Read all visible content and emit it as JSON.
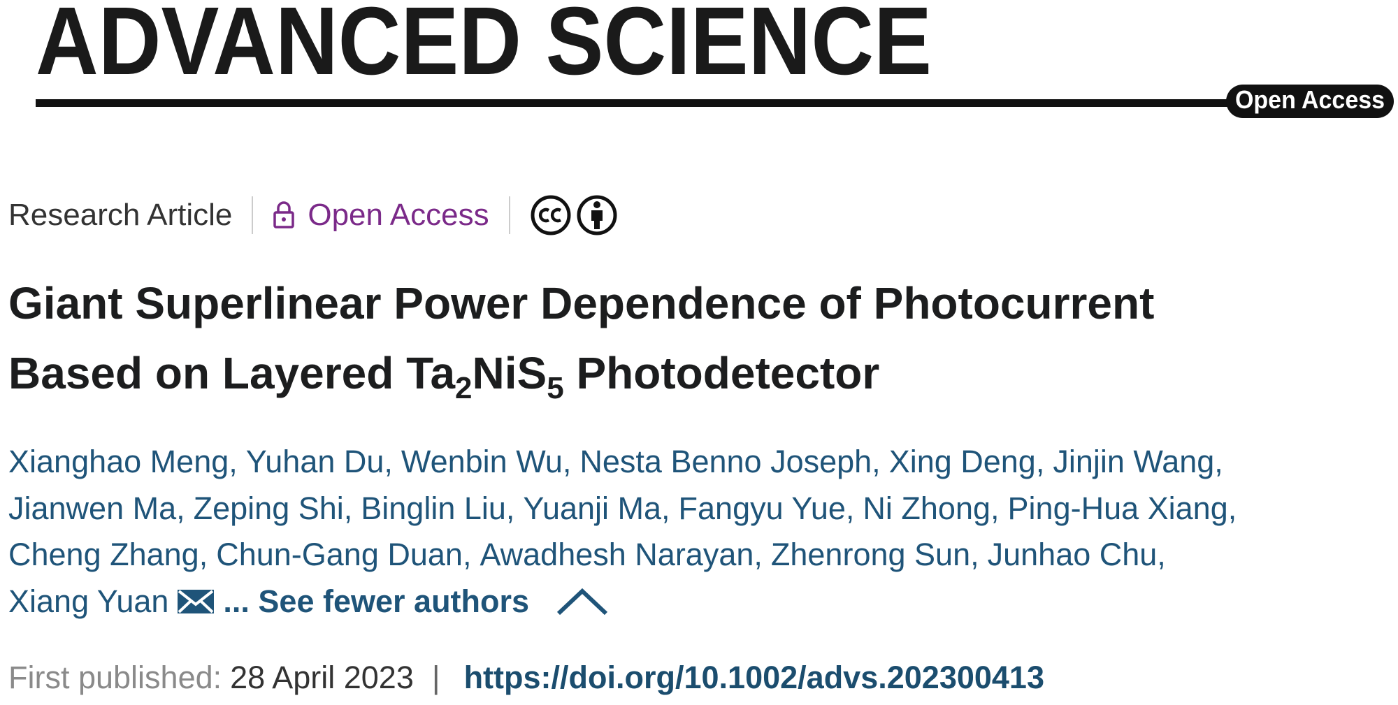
{
  "header": {
    "logo": "ADVANCED SCIENCE",
    "badge": "Open Access"
  },
  "meta": {
    "type": "Research Article",
    "access": "Open Access"
  },
  "title": {
    "line1": "Giant Superlinear Power Dependence of Photocurrent",
    "line2": [
      "Based on Layered Ta",
      "2",
      "NiS",
      "5",
      " Photodetector"
    ]
  },
  "author_lines": [
    [
      "Xianghao Meng,",
      "Yuhan Du,",
      "Wenbin Wu,",
      "Nesta Benno Joseph,",
      "Xing Deng,",
      "Jinjin Wang,"
    ],
    [
      "Jianwen Ma,",
      "Zeping Shi,",
      "Binglin Liu,",
      "Yuanji Ma,",
      "Fangyu Yue,",
      "Ni Zhong,",
      "Ping-Hua Xiang,"
    ],
    [
      "Cheng Zhang,",
      "Chun-Gang Duan,",
      "Awadhesh Narayan,",
      "Zhenrong Sun,",
      "Junhao Chu,"
    ],
    [
      "Xiang Yuan"
    ]
  ],
  "see_fewer": "... See fewer authors",
  "published": {
    "label": "First published:",
    "date": "28 April 2023",
    "separator": "|",
    "doi": "https://doi.org/10.1002/advs.202300413"
  }
}
